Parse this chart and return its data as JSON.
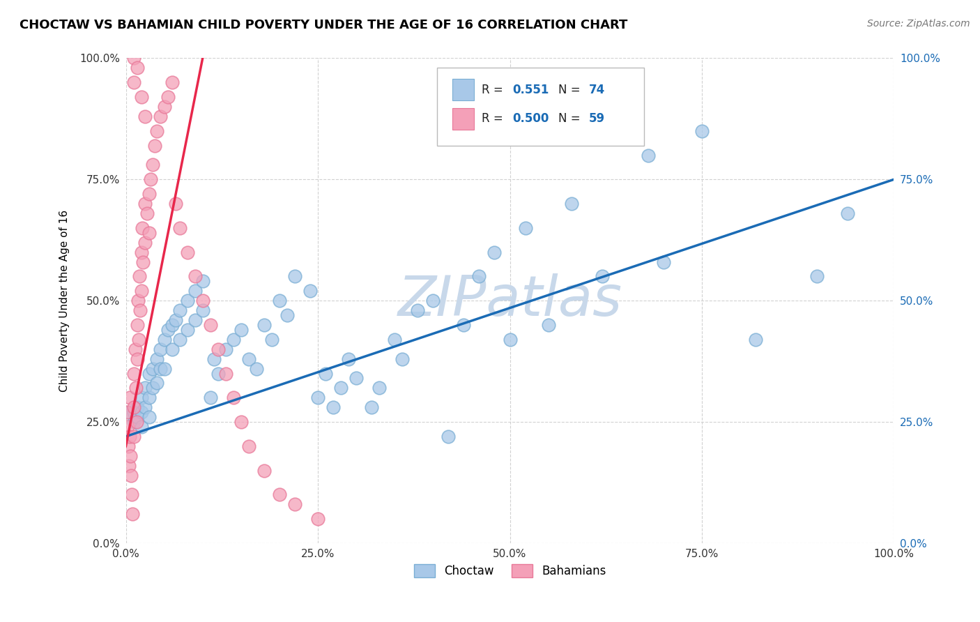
{
  "title": "CHOCTAW VS BAHAMIAN CHILD POVERTY UNDER THE AGE OF 16 CORRELATION CHART",
  "source": "Source: ZipAtlas.com",
  "ylabel": "Child Poverty Under the Age of 16",
  "xlim": [
    0,
    1
  ],
  "ylim": [
    0,
    1
  ],
  "xticks": [
    0.0,
    0.25,
    0.5,
    0.75,
    1.0
  ],
  "yticks": [
    0.0,
    0.25,
    0.5,
    0.75,
    1.0
  ],
  "xticklabels": [
    "0.0%",
    "25.0%",
    "50.0%",
    "75.0%",
    "100.0%"
  ],
  "yticklabels_left": [
    "0.0%",
    "25.0%",
    "50.0%",
    "75.0%",
    "100.0%"
  ],
  "yticklabels_right": [
    "0.0%",
    "25.0%",
    "50.0%",
    "75.0%",
    "100.0%"
  ],
  "legend_r1": "0.551",
  "legend_n1": "74",
  "legend_r2": "0.500",
  "legend_n2": "59",
  "choctaw_color": "#a8c8e8",
  "bahamian_color": "#f4a0b8",
  "choctaw_edge": "#7aaed4",
  "bahamian_edge": "#e87898",
  "trendline_choctaw_color": "#1a6bb5",
  "trendline_bahamian_color": "#e8274b",
  "watermark": "ZIPatlas",
  "watermark_color": "#c8d8ea",
  "right_tick_color": "#1a6bb5",
  "left_tick_color": "#333333",
  "xtick_color": "#333333",
  "choctaw_x": [
    0.005,
    0.01,
    0.01,
    0.015,
    0.015,
    0.02,
    0.02,
    0.02,
    0.025,
    0.025,
    0.03,
    0.03,
    0.03,
    0.035,
    0.035,
    0.04,
    0.04,
    0.045,
    0.045,
    0.05,
    0.05,
    0.055,
    0.06,
    0.06,
    0.065,
    0.07,
    0.07,
    0.08,
    0.08,
    0.09,
    0.09,
    0.1,
    0.1,
    0.11,
    0.115,
    0.12,
    0.13,
    0.14,
    0.15,
    0.16,
    0.17,
    0.18,
    0.19,
    0.2,
    0.21,
    0.22,
    0.24,
    0.25,
    0.26,
    0.27,
    0.28,
    0.29,
    0.3,
    0.32,
    0.33,
    0.35,
    0.36,
    0.38,
    0.4,
    0.42,
    0.44,
    0.46,
    0.48,
    0.5,
    0.52,
    0.55,
    0.58,
    0.62,
    0.68,
    0.7,
    0.75,
    0.82,
    0.9,
    0.94
  ],
  "choctaw_y": [
    0.27,
    0.27,
    0.25,
    0.28,
    0.26,
    0.3,
    0.27,
    0.24,
    0.32,
    0.28,
    0.35,
    0.3,
    0.26,
    0.36,
    0.32,
    0.38,
    0.33,
    0.4,
    0.36,
    0.42,
    0.36,
    0.44,
    0.45,
    0.4,
    0.46,
    0.48,
    0.42,
    0.5,
    0.44,
    0.52,
    0.46,
    0.54,
    0.48,
    0.3,
    0.38,
    0.35,
    0.4,
    0.42,
    0.44,
    0.38,
    0.36,
    0.45,
    0.42,
    0.5,
    0.47,
    0.55,
    0.52,
    0.3,
    0.35,
    0.28,
    0.32,
    0.38,
    0.34,
    0.28,
    0.32,
    0.42,
    0.38,
    0.48,
    0.5,
    0.22,
    0.45,
    0.55,
    0.6,
    0.42,
    0.65,
    0.45,
    0.7,
    0.55,
    0.8,
    0.58,
    0.85,
    0.42,
    0.55,
    0.68
  ],
  "bahamian_x": [
    0.001,
    0.002,
    0.003,
    0.004,
    0.005,
    0.005,
    0.006,
    0.007,
    0.008,
    0.009,
    0.01,
    0.01,
    0.01,
    0.012,
    0.013,
    0.014,
    0.015,
    0.015,
    0.016,
    0.017,
    0.018,
    0.019,
    0.02,
    0.02,
    0.021,
    0.022,
    0.025,
    0.025,
    0.028,
    0.03,
    0.03,
    0.032,
    0.035,
    0.038,
    0.04,
    0.045,
    0.05,
    0.055,
    0.06,
    0.065,
    0.07,
    0.08,
    0.09,
    0.1,
    0.11,
    0.12,
    0.13,
    0.14,
    0.15,
    0.16,
    0.18,
    0.2,
    0.22,
    0.25,
    0.01,
    0.01,
    0.015,
    0.02,
    0.025
  ],
  "bahamian_y": [
    0.27,
    0.24,
    0.2,
    0.16,
    0.3,
    0.22,
    0.18,
    0.14,
    0.1,
    0.06,
    0.35,
    0.28,
    0.22,
    0.4,
    0.32,
    0.25,
    0.45,
    0.38,
    0.5,
    0.42,
    0.55,
    0.48,
    0.6,
    0.52,
    0.65,
    0.58,
    0.7,
    0.62,
    0.68,
    0.72,
    0.64,
    0.75,
    0.78,
    0.82,
    0.85,
    0.88,
    0.9,
    0.92,
    0.95,
    0.7,
    0.65,
    0.6,
    0.55,
    0.5,
    0.45,
    0.4,
    0.35,
    0.3,
    0.25,
    0.2,
    0.15,
    0.1,
    0.08,
    0.05,
    0.95,
    1.0,
    0.98,
    0.92,
    0.88
  ]
}
